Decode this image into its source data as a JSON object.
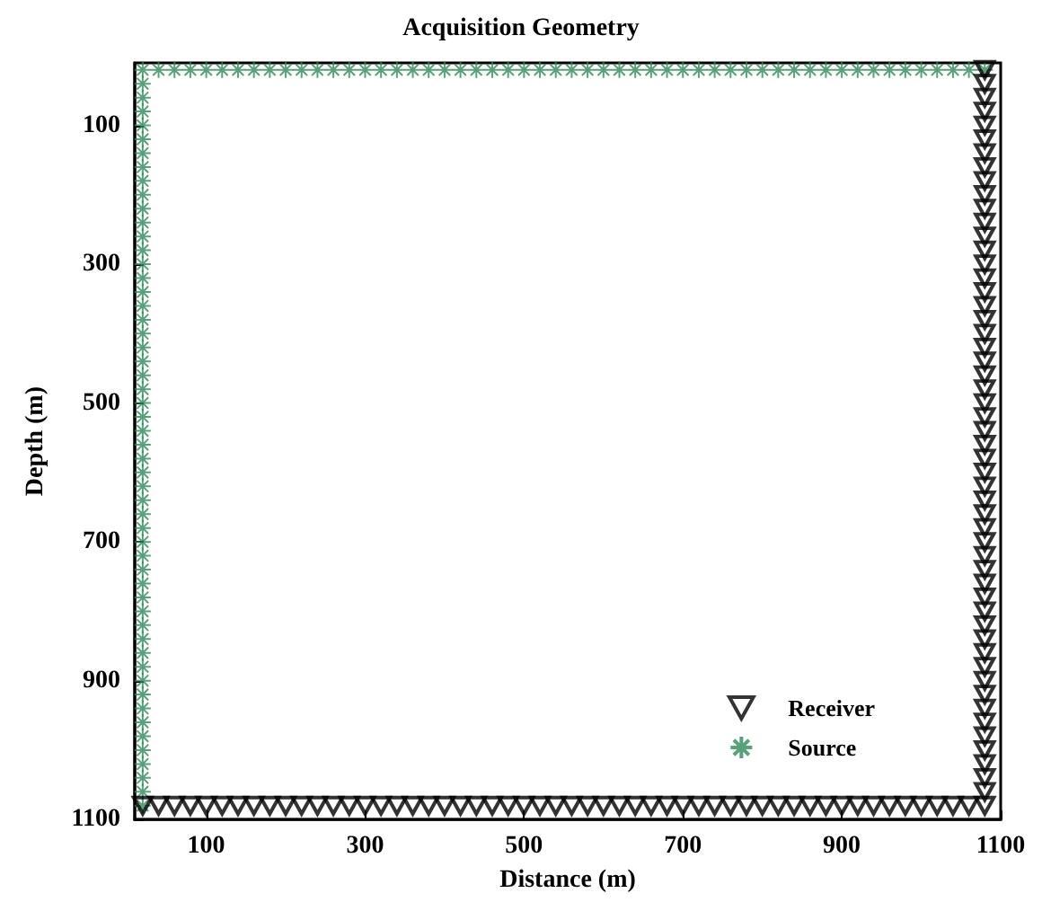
{
  "chart_data": {
    "type": "scatter",
    "title": "Acquisition Geometry",
    "xlabel": "Distance (m)",
    "ylabel": "Depth (m)",
    "xlim": [
      10,
      1100
    ],
    "xticks": [
      100,
      300,
      500,
      700,
      900,
      1100
    ],
    "ylim": [
      1100,
      10
    ],
    "yticks": [
      100,
      300,
      500,
      700,
      900,
      1100
    ],
    "grid": false,
    "legend": "bottom right",
    "series": [
      {
        "name": "Receiver",
        "color": "#000000",
        "marker": "triangle",
        "x": [
          1080,
          1080,
          1080,
          1080,
          1080,
          1080,
          1080,
          1080,
          1080,
          1080,
          1080,
          1080,
          1080,
          1080,
          1080,
          1080,
          1080,
          1080,
          1080,
          1080,
          1080,
          1080,
          1080,
          1080,
          1080,
          1080,
          1080,
          1080,
          1080,
          1080,
          1080,
          1080,
          1080,
          1080,
          1080,
          1080,
          1080,
          1080,
          1080,
          1080,
          1080,
          1080,
          1080,
          1080,
          1080,
          1080,
          1080,
          1080,
          1080,
          1080,
          1080,
          1080,
          1080,
          1080,
          20,
          40,
          60,
          80,
          100,
          120,
          140,
          160,
          180,
          200,
          220,
          240,
          260,
          280,
          300,
          320,
          340,
          360,
          380,
          400,
          420,
          440,
          460,
          480,
          500,
          520,
          540,
          560,
          580,
          600,
          620,
          640,
          660,
          680,
          700,
          720,
          740,
          760,
          780,
          800,
          820,
          840,
          860,
          880,
          900,
          920,
          940,
          960,
          980,
          1000,
          1020,
          1040,
          1060
        ],
        "values": [
          20,
          40,
          60,
          80,
          100,
          120,
          140,
          160,
          180,
          200,
          220,
          240,
          260,
          280,
          300,
          320,
          340,
          360,
          380,
          400,
          420,
          440,
          460,
          480,
          500,
          520,
          540,
          560,
          580,
          600,
          620,
          640,
          660,
          680,
          700,
          720,
          740,
          760,
          780,
          800,
          820,
          840,
          860,
          880,
          900,
          920,
          940,
          960,
          980,
          1000,
          1020,
          1040,
          1060,
          1080,
          1080,
          1080,
          1080,
          1080,
          1080,
          1080,
          1080,
          1080,
          1080,
          1080,
          1080,
          1080,
          1080,
          1080,
          1080,
          1080,
          1080,
          1080,
          1080,
          1080,
          1080,
          1080,
          1080,
          1080,
          1080,
          1080,
          1080,
          1080,
          1080,
          1080,
          1080,
          1080,
          1080,
          1080,
          1080,
          1080,
          1080,
          1080,
          1080,
          1080,
          1080,
          1080,
          1080,
          1080,
          1080,
          1080,
          1080,
          1080,
          1080,
          1080,
          1080,
          1080,
          1080
        ]
      },
      {
        "name": "Source",
        "color": "#2e8b57",
        "marker": "cross",
        "x": [
          20,
          20,
          20,
          20,
          20,
          20,
          20,
          20,
          20,
          20,
          20,
          20,
          20,
          20,
          20,
          20,
          20,
          20,
          20,
          20,
          20,
          20,
          20,
          20,
          20,
          20,
          20,
          20,
          20,
          20,
          20,
          20,
          20,
          20,
          20,
          20,
          20,
          20,
          20,
          20,
          20,
          20,
          20,
          20,
          20,
          20,
          20,
          20,
          20,
          20,
          20,
          20,
          20,
          20,
          40,
          60,
          80,
          100,
          120,
          140,
          160,
          180,
          200,
          220,
          240,
          260,
          280,
          300,
          320,
          340,
          360,
          380,
          400,
          420,
          440,
          460,
          480,
          500,
          520,
          540,
          560,
          580,
          600,
          620,
          640,
          660,
          680,
          700,
          720,
          740,
          760,
          780,
          800,
          820,
          840,
          860,
          880,
          900,
          920,
          940,
          960,
          980,
          1000,
          1020,
          1040,
          1060,
          1080
        ],
        "values": [
          20,
          40,
          60,
          80,
          100,
          120,
          140,
          160,
          180,
          200,
          220,
          240,
          260,
          280,
          300,
          320,
          340,
          360,
          380,
          400,
          420,
          440,
          460,
          480,
          500,
          520,
          540,
          560,
          580,
          600,
          620,
          640,
          660,
          680,
          700,
          720,
          740,
          760,
          780,
          800,
          820,
          840,
          860,
          880,
          900,
          920,
          940,
          960,
          980,
          1000,
          1020,
          1040,
          1060,
          1080,
          20,
          20,
          20,
          20,
          20,
          20,
          20,
          20,
          20,
          20,
          20,
          20,
          20,
          20,
          20,
          20,
          20,
          20,
          20,
          20,
          20,
          20,
          20,
          20,
          20,
          20,
          20,
          20,
          20,
          20,
          20,
          20,
          20,
          20,
          20,
          20,
          20,
          20,
          20,
          20,
          20,
          20,
          20,
          20,
          20,
          20,
          20,
          20,
          20,
          20,
          20,
          20,
          20
        ]
      }
    ]
  }
}
